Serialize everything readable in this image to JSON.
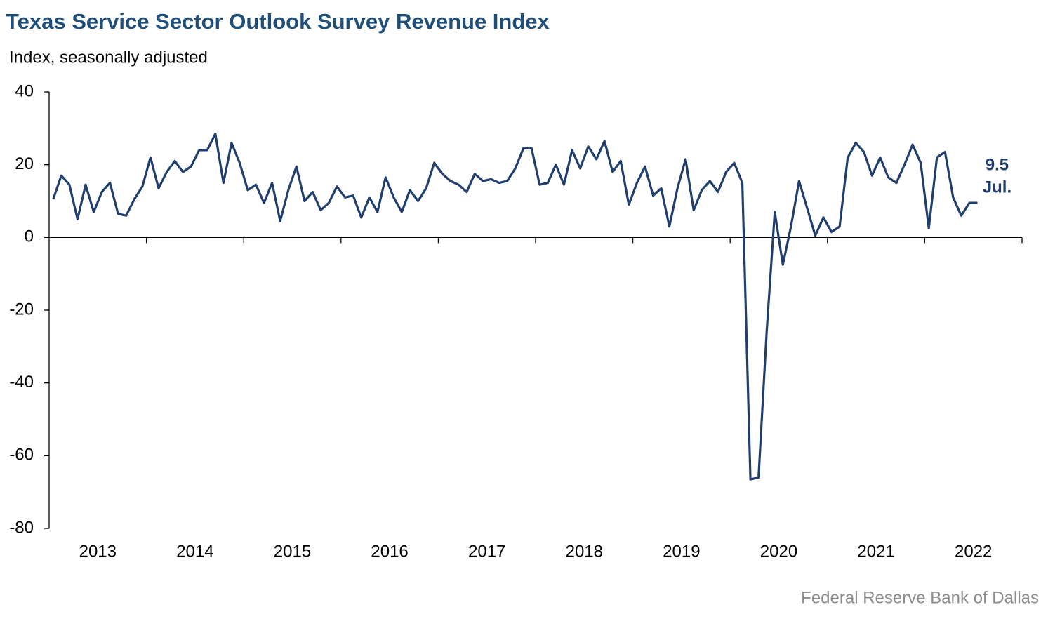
{
  "chart_data": {
    "type": "line",
    "title": "Texas Service Sector Outlook Survey Revenue Index",
    "subtitle": "Index, seasonally adjusted",
    "source": "Federal Reserve Bank of Dallas",
    "annotation": "Jul.",
    "color": "#213f6e",
    "ylim": [
      -80,
      40
    ],
    "yticks": [
      -80,
      -60,
      -40,
      -20,
      0,
      20,
      40
    ],
    "categories": [
      null,
      null,
      null,
      null,
      null,
      null,
      "2013",
      null,
      null,
      null,
      null,
      null,
      null,
      null,
      null,
      null,
      null,
      null,
      "2014",
      null,
      null,
      null,
      null,
      null,
      null,
      null,
      null,
      null,
      null,
      null,
      "2015",
      null,
      null,
      null,
      null,
      null,
      null,
      null,
      null,
      null,
      null,
      null,
      "2016",
      null,
      null,
      null,
      null,
      null,
      null,
      null,
      null,
      null,
      null,
      null,
      "2017",
      null,
      null,
      null,
      null,
      null,
      null,
      null,
      null,
      null,
      null,
      null,
      "2018",
      null,
      null,
      null,
      null,
      null,
      null,
      null,
      null,
      null,
      null,
      null,
      "2019",
      null,
      null,
      null,
      null,
      null,
      null,
      null,
      null,
      null,
      null,
      null,
      "2020",
      null,
      null,
      null,
      null,
      null,
      null,
      null,
      null,
      null,
      null,
      null,
      "2021",
      null,
      null,
      null,
      null,
      null,
      null,
      null,
      null,
      null,
      null,
      null,
      "2022"
    ],
    "values": [
      10.5,
      17,
      14.5,
      5,
      14.5,
      7,
      12.5,
      15,
      6.5,
      6,
      10.5,
      14,
      22,
      13.5,
      18,
      21,
      18,
      19.5,
      24,
      24,
      28.5,
      15,
      26,
      20.5,
      13,
      14.5,
      9.5,
      15,
      4.5,
      13,
      19.5,
      10,
      12.5,
      7.5,
      9.5,
      14,
      11,
      11.5,
      5.5,
      11,
      7,
      16.5,
      11,
      7,
      13,
      10,
      13.5,
      20.5,
      17.5,
      15.5,
      14.5,
      12.5,
      17.5,
      15.5,
      16,
      15,
      15.5,
      19,
      24.5,
      24.5,
      14.5,
      15,
      20,
      14.5,
      24,
      19,
      25,
      21.5,
      26.5,
      18,
      21,
      9,
      15,
      19.5,
      11.5,
      13.5,
      3,
      13.5,
      21.5,
      7.5,
      13,
      15.5,
      12.5,
      18,
      20.5,
      15,
      -66.5,
      -66,
      -26,
      7,
      -7.5,
      3,
      15.5,
      8,
      0.5,
      5.5,
      1.5,
      3,
      22,
      26,
      23.5,
      17,
      22,
      16.5,
      15,
      20,
      25.5,
      20.5,
      2.5,
      22,
      23.5,
      11,
      6,
      9.5,
      9.5
    ]
  }
}
